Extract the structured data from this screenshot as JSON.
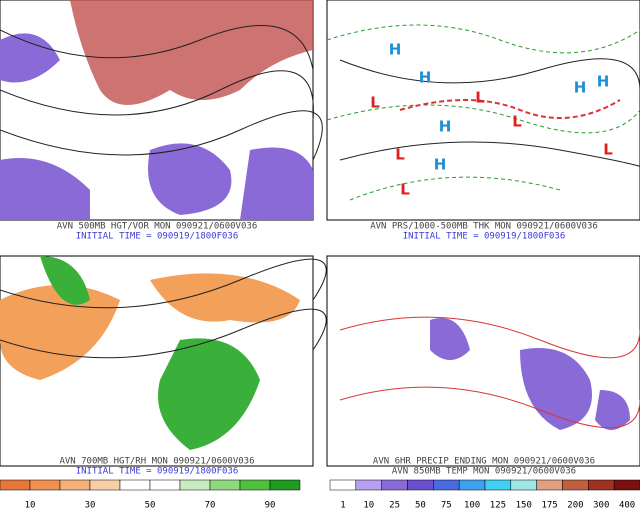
{
  "panels": [
    {
      "caption": [
        "AVN 500MB HGT/VOR MON 090921/0600V036",
        "INITIAL TIME = 090919/1800F036"
      ]
    },
    {
      "caption": [
        "AVN PRS/1000-500MB THK MON 090921/0600V036",
        "INITIAL TIME = 090919/1800F036"
      ],
      "centers": [
        "H",
        "H",
        "H",
        "H",
        "H",
        "H",
        "L",
        "L",
        "L",
        "L",
        "L",
        "L"
      ]
    },
    {
      "caption": [
        "AVN 700MB HGT/RH MON 090921/0600V036",
        "INITIAL TIME = 090919/1800F036"
      ],
      "colorbar": [
        "10",
        "30",
        "50",
        "70",
        "90"
      ]
    },
    {
      "caption": [
        "AVN 6HR PRECIP ENDING MON 090921/0600V036",
        "AVN 850MB TEMP MON 090921/0600V036"
      ],
      "colorbar": [
        "1",
        "10",
        "25",
        "50",
        "75",
        "100",
        "125",
        "150",
        "175",
        "200",
        "300",
        "400"
      ]
    }
  ]
}
